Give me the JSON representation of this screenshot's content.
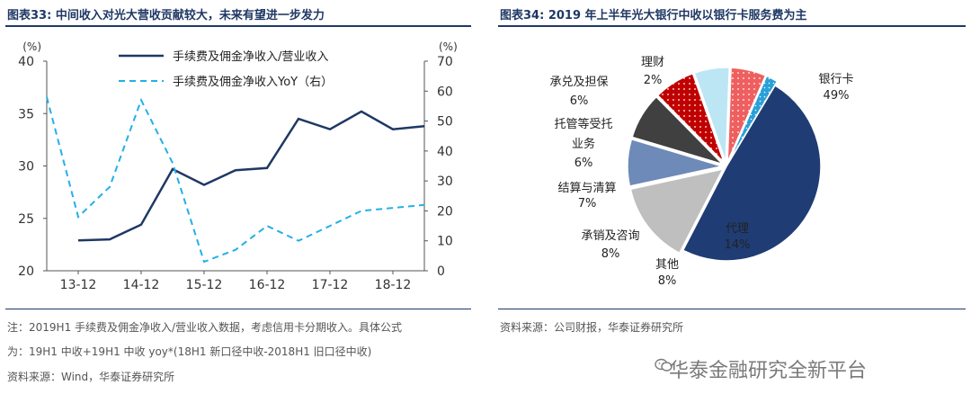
{
  "left_panel": {
    "title": "图表33:  中间收入对光大营收贡献较大，未来有望进一步发力",
    "notes": [
      "注：2019H1 手续费及佣金净收入/营业收入数据，考虑信用卡分期收入。具体公式",
      "为：19H1 中收+19H1 中收 yoy*(18H1 新口径中收-2018H1 旧口径中收)",
      "资料来源：Wind，华泰证券研究所"
    ]
  },
  "right_panel": {
    "title": "图表34:  2019 年上半年光大银行中收以银行卡服务费为主",
    "notes": [
      "资料来源：公司财报，华泰证券研究所"
    ]
  },
  "watermark": "华泰金融研究全新平台",
  "chart_data": [
    {
      "type": "line",
      "left_axis": {
        "unit": "(%)",
        "ylim": [
          20,
          40
        ],
        "ticks": [
          "20",
          "25",
          "30",
          "35",
          "40"
        ]
      },
      "right_axis": {
        "unit": "(%)",
        "ylim": [
          0,
          70
        ],
        "ticks": [
          "0",
          "10",
          "20",
          "30",
          "40",
          "50",
          "60",
          "70"
        ]
      },
      "x_tick_labels": [
        "13-12",
        "14-12",
        "15-12",
        "16-12",
        "17-12",
        "18-12"
      ],
      "grid": false,
      "legend_position": "top-center",
      "series": [
        {
          "name": "手续费及佣金净收入/营业收入",
          "axis": "left",
          "style": "solid",
          "color": "#1f3864",
          "x": [
            "13-12",
            "14-06",
            "14-12",
            "15-06",
            "15-12",
            "16-06",
            "16-12",
            "17-06",
            "17-12",
            "18-06",
            "18-12",
            "19-06"
          ],
          "values": [
            22.9,
            23.0,
            24.4,
            29.7,
            28.2,
            29.6,
            29.8,
            34.5,
            33.5,
            35.2,
            33.5,
            33.8
          ]
        },
        {
          "name": "手续费及佣金净收入YoY（右）",
          "axis": "right",
          "style": "dashed",
          "color": "#22b0e8",
          "x": [
            "13-06",
            "13-12",
            "14-06",
            "14-12",
            "15-06",
            "15-12",
            "16-06",
            "16-12",
            "17-06",
            "17-12",
            "18-06",
            "18-12",
            "19-06"
          ],
          "values": [
            58,
            18,
            28,
            57,
            36,
            3,
            7,
            15,
            10,
            15,
            20,
            21,
            22
          ]
        }
      ]
    },
    {
      "type": "pie",
      "slices": [
        {
          "name": "银行卡",
          "label": "49%",
          "value": 49,
          "color": "#1f3d74"
        },
        {
          "name": "代理",
          "label": "14%",
          "value": 14,
          "color": "#bfbfbf"
        },
        {
          "name": "其他",
          "label": "8%",
          "value": 8,
          "color": "#6d8ab8"
        },
        {
          "name": "承销及咨询",
          "label": "8%",
          "value": 8,
          "color": "#404040"
        },
        {
          "name": "结算与清算",
          "label": "7%",
          "value": 7,
          "color": "#c00000"
        },
        {
          "name": "托管等受托业务",
          "label": "6%",
          "value": 6,
          "color": "#bde6f5"
        },
        {
          "name": "承兑及担保",
          "label": "6%",
          "value": 6,
          "color": "#ef5f5f"
        },
        {
          "name": "理财",
          "label": "2%",
          "value": 2,
          "color": "#2a9fd8"
        }
      ]
    }
  ]
}
